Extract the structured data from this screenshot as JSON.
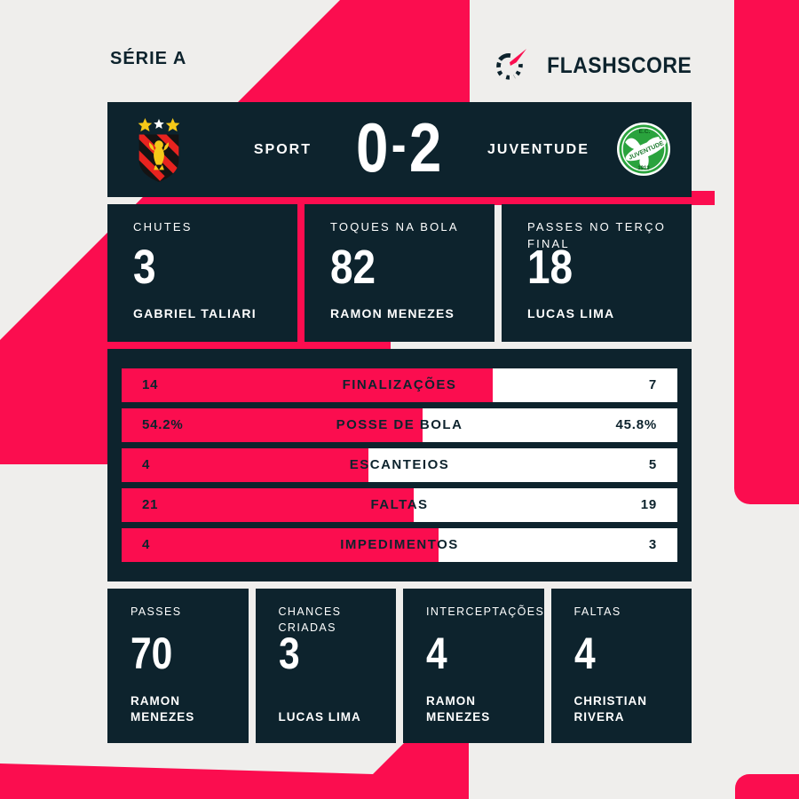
{
  "colors": {
    "pink": "#fb0d4f",
    "navy": "#0d232d",
    "bg": "#efeeec",
    "white": "#ffffff",
    "sport_yellow": "#f5c818",
    "sport_red": "#e8231f",
    "juventude_green": "#2aa33d"
  },
  "header": {
    "league": "SÉRIE A",
    "brand": "FLASHSCORE"
  },
  "scoreboard": {
    "home_name": "SPORT",
    "away_name": "JUVENTUDE",
    "home_score": "0",
    "separator": "-",
    "away_score": "2",
    "home_crest": "sport-crest",
    "away_crest": "juventude-crest"
  },
  "top_stats": [
    {
      "label": "CHUTES",
      "value": "3",
      "player": "GABRIEL TALIARI"
    },
    {
      "label": "TOQUES NA BOLA",
      "value": "82",
      "player": "RAMON MENEZES"
    },
    {
      "label": "PASSES NO TERÇO FINAL",
      "value": "18",
      "player": "LUCAS LIMA"
    }
  ],
  "chart_data": {
    "type": "bar",
    "orientation": "horizontal-split",
    "home_team": "SPORT",
    "away_team": "JUVENTUDE",
    "home_color": "#fb0d4f",
    "away_color": "#ffffff",
    "bars": [
      {
        "label": "FINALIZAÇÕES",
        "home": 14,
        "away": 7,
        "home_display": "14",
        "away_display": "7",
        "home_pct": 66.7
      },
      {
        "label": "POSSE DE BOLA",
        "home": 54.2,
        "away": 45.8,
        "home_display": "54.2%",
        "away_display": "45.8%",
        "home_pct": 54.2
      },
      {
        "label": "ESCANTEIOS",
        "home": 4,
        "away": 5,
        "home_display": "4",
        "away_display": "5",
        "home_pct": 44.4
      },
      {
        "label": "FALTAS",
        "home": 21,
        "away": 19,
        "home_display": "21",
        "away_display": "19",
        "home_pct": 52.5
      },
      {
        "label": "IMPEDIMENTOS",
        "home": 4,
        "away": 3,
        "home_display": "4",
        "away_display": "3",
        "home_pct": 57.1
      }
    ]
  },
  "bottom_stats": [
    {
      "label": "PASSES",
      "value": "70",
      "player": "RAMON MENEZES"
    },
    {
      "label": "CHANCES\nCRIADAS",
      "value": "3",
      "player": "LUCAS LIMA"
    },
    {
      "label": "INTERCEPTAÇÕES",
      "value": "4",
      "player": "RAMON MENEZES"
    },
    {
      "label": "FALTAS",
      "value": "4",
      "player": "CHRISTIAN\nRIVERA"
    }
  ]
}
